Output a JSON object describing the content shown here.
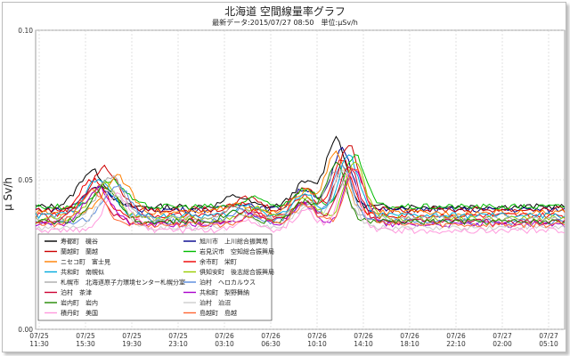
{
  "chart_data": {
    "type": "line",
    "title": "北海道 空間線量率グラフ",
    "subtitle": "最新データ:2015/07/27 08:50　単位:μSv/h",
    "ylabel": "μ Sv/h",
    "ylim": [
      0.0,
      0.1
    ],
    "yticks": [
      "0.00",
      "0.05",
      "0.10"
    ],
    "xticks": [
      {
        "date": "07/25",
        "time": "11:30"
      },
      {
        "date": "07/25",
        "time": "15:30"
      },
      {
        "date": "07/25",
        "time": "19:30"
      },
      {
        "date": "07/25",
        "time": "23:10"
      },
      {
        "date": "07/26",
        "time": "03:10"
      },
      {
        "date": "07/26",
        "time": "06:30"
      },
      {
        "date": "07/26",
        "time": "10:10"
      },
      {
        "date": "07/26",
        "time": "14:10"
      },
      {
        "date": "07/26",
        "time": "18:10"
      },
      {
        "date": "07/26",
        "time": "22:10"
      },
      {
        "date": "07/27",
        "time": "02:00"
      },
      {
        "date": "07/27",
        "time": "05:10"
      }
    ],
    "grid": true,
    "legend_position": "bottom-left",
    "series": [
      {
        "name": "寿都町　磯谷",
        "color": "#000000",
        "base": 0.041,
        "p1": 0.053,
        "p2": 0.064
      },
      {
        "name": "旭川市　上川総合振興局",
        "color": "#00008b",
        "base": 0.04,
        "p1": 0.048,
        "p2": 0.06
      },
      {
        "name": "蘭越町　蘭越",
        "color": "#cc0000",
        "base": 0.04,
        "p1": 0.054,
        "p2": 0.062
      },
      {
        "name": "岩見沢市　空知総合振興局",
        "color": "#00bb00",
        "base": 0.041,
        "p1": 0.05,
        "p2": 0.058
      },
      {
        "name": "ニセコ町　富士見",
        "color": "#ff7f00",
        "base": 0.039,
        "p1": 0.051,
        "p2": 0.059
      },
      {
        "name": "余市町　栄町",
        "color": "#ee0000",
        "base": 0.038,
        "p1": 0.05,
        "p2": 0.057
      },
      {
        "name": "共和町　南幌似",
        "color": "#00aadd",
        "base": 0.038,
        "p1": 0.05,
        "p2": 0.058
      },
      {
        "name": "俱知安町　後志総合振興局",
        "color": "#99cc00",
        "base": 0.037,
        "p1": 0.049,
        "p2": 0.056
      },
      {
        "name": "札幌市　北海道原子力環境センター札幌分室",
        "color": "#aaaaaa",
        "base": 0.037,
        "p1": 0.051,
        "p2": 0.052
      },
      {
        "name": "泊村　ヘロカルウス",
        "color": "#5588dd",
        "base": 0.036,
        "p1": 0.048,
        "p2": 0.055
      },
      {
        "name": "泊村　茶津",
        "color": "#cc0033",
        "base": 0.036,
        "p1": 0.047,
        "p2": 0.055
      },
      {
        "name": "共和町　梨野舞納",
        "color": "#aa00cc",
        "base": 0.035,
        "p1": 0.047,
        "p2": 0.054
      },
      {
        "name": "岩内町　岩内",
        "color": "#228800",
        "base": 0.036,
        "p1": 0.048,
        "p2": 0.055
      },
      {
        "name": "泊村　泊沼",
        "color": "#cccccc",
        "base": 0.034,
        "p1": 0.046,
        "p2": 0.053
      },
      {
        "name": "積丹町　美国",
        "color": "#ff99dd",
        "base": 0.033,
        "p1": 0.045,
        "p2": 0.052
      },
      {
        "name": "島越町　島越",
        "color": "#ff6633",
        "base": 0.035,
        "p1": 0.046,
        "p2": 0.054
      }
    ]
  }
}
